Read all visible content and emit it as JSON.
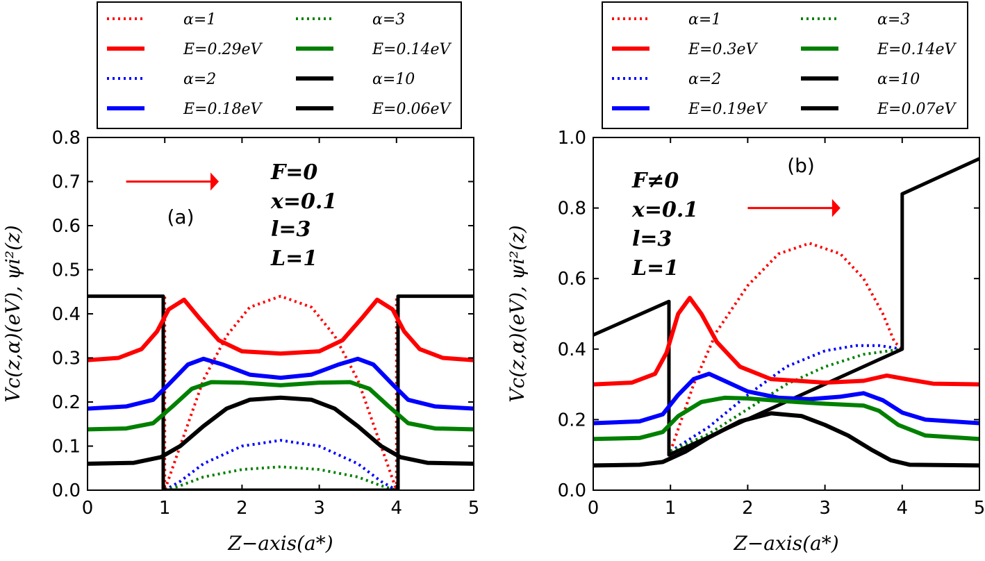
{
  "chart_data": [
    {
      "type": "line",
      "panel_label": "(a)",
      "xlabel": "Z−axis(a*)",
      "ylabel": "Vc(z,α)(eV), ψi²(z)",
      "xlim": [
        0,
        5
      ],
      "ylim": [
        0,
        0.8
      ],
      "x_ticks": [
        "0",
        "1",
        "2",
        "3",
        "4",
        "5"
      ],
      "y_ticks": [
        "0.0",
        "0.1",
        "0.2",
        "0.3",
        "0.4",
        "0.5",
        "0.6",
        "0.7",
        "0.8"
      ],
      "grid": false,
      "legend_position": "top, outside, two columns",
      "legend": [
        {
          "label": "α=1",
          "color": "#ff0000",
          "style": "dotted"
        },
        {
          "label": "α=3",
          "color": "#008000",
          "style": "dotted"
        },
        {
          "label": "E=0.29eV",
          "color": "#ff0000",
          "style": "solid"
        },
        {
          "label": "E=0.14eV",
          "color": "#008000",
          "style": "solid"
        },
        {
          "label": "α=2",
          "color": "#0000ff",
          "style": "dotted"
        },
        {
          "label": "α=10",
          "color": "#000000",
          "style": "solid"
        },
        {
          "label": "E=0.18eV",
          "color": "#0000ff",
          "style": "solid"
        },
        {
          "label": "E=0.06eV",
          "color": "#000000",
          "style": "solid"
        }
      ],
      "annotations": [
        "F=0",
        "x=0.1",
        "l=3",
        "L=1"
      ],
      "arrow": {
        "from": [
          0.5,
          0.7
        ],
        "to": [
          1.7,
          0.7
        ],
        "color": "#ff0000"
      },
      "series": [
        {
          "name": "potential α=1",
          "color": "#ff0000",
          "style": "dotted",
          "points": [
            [
              0,
              0.44
            ],
            [
              1,
              0.44
            ],
            [
              1,
              0
            ],
            [
              1.2,
              0.1
            ],
            [
              1.5,
              0.25
            ],
            [
              1.8,
              0.35
            ],
            [
              2.1,
              0.415
            ],
            [
              2.5,
              0.44
            ],
            [
              2.9,
              0.415
            ],
            [
              3.2,
              0.35
            ],
            [
              3.5,
              0.25
            ],
            [
              3.8,
              0.1
            ],
            [
              4,
              0
            ],
            [
              4,
              0.44
            ],
            [
              5,
              0.44
            ]
          ]
        },
        {
          "name": "potential α=2",
          "color": "#0000ff",
          "style": "dotted",
          "points": [
            [
              1,
              0
            ],
            [
              1.2,
              0.02
            ],
            [
              1.5,
              0.06
            ],
            [
              2,
              0.1
            ],
            [
              2.5,
              0.113
            ],
            [
              3,
              0.1
            ],
            [
              3.5,
              0.06
            ],
            [
              3.8,
              0.02
            ],
            [
              4,
              0
            ]
          ]
        },
        {
          "name": "potential α=3",
          "color": "#008000",
          "style": "dotted",
          "points": [
            [
              1,
              0
            ],
            [
              1.2,
              0.01
            ],
            [
              1.5,
              0.03
            ],
            [
              2,
              0.047
            ],
            [
              2.5,
              0.053
            ],
            [
              3,
              0.047
            ],
            [
              3.5,
              0.03
            ],
            [
              3.8,
              0.01
            ],
            [
              4,
              0
            ]
          ]
        },
        {
          "name": "potential α=10",
          "color": "#000000",
          "style": "solid",
          "points": [
            [
              0,
              0.44
            ],
            [
              0.98,
              0.44
            ],
            [
              0.98,
              0
            ],
            [
              4.02,
              0
            ],
            [
              4.02,
              0.44
            ],
            [
              5,
              0.44
            ]
          ]
        },
        {
          "name": "E=0.29eV",
          "color": "#ff0000",
          "style": "solid",
          "points": [
            [
              0,
              0.295
            ],
            [
              0.4,
              0.3
            ],
            [
              0.7,
              0.32
            ],
            [
              0.9,
              0.36
            ],
            [
              1.05,
              0.41
            ],
            [
              1.25,
              0.432
            ],
            [
              1.45,
              0.39
            ],
            [
              1.7,
              0.34
            ],
            [
              2,
              0.315
            ],
            [
              2.5,
              0.31
            ],
            [
              3,
              0.315
            ],
            [
              3.3,
              0.34
            ],
            [
              3.55,
              0.39
            ],
            [
              3.75,
              0.432
            ],
            [
              3.95,
              0.41
            ],
            [
              4.1,
              0.36
            ],
            [
              4.3,
              0.32
            ],
            [
              4.6,
              0.3
            ],
            [
              5,
              0.295
            ]
          ]
        },
        {
          "name": "E=0.18eV",
          "color": "#0000ff",
          "style": "solid",
          "points": [
            [
              0,
              0.185
            ],
            [
              0.5,
              0.19
            ],
            [
              0.85,
              0.205
            ],
            [
              1.05,
              0.24
            ],
            [
              1.3,
              0.285
            ],
            [
              1.5,
              0.298
            ],
            [
              1.75,
              0.285
            ],
            [
              2.1,
              0.262
            ],
            [
              2.5,
              0.255
            ],
            [
              2.9,
              0.262
            ],
            [
              3.25,
              0.285
            ],
            [
              3.5,
              0.298
            ],
            [
              3.7,
              0.285
            ],
            [
              3.95,
              0.24
            ],
            [
              4.15,
              0.205
            ],
            [
              4.5,
              0.19
            ],
            [
              5,
              0.185
            ]
          ]
        },
        {
          "name": "E=0.14eV",
          "color": "#008000",
          "style": "solid",
          "points": [
            [
              0,
              0.138
            ],
            [
              0.5,
              0.14
            ],
            [
              0.85,
              0.152
            ],
            [
              1.1,
              0.19
            ],
            [
              1.35,
              0.23
            ],
            [
              1.6,
              0.245
            ],
            [
              2,
              0.244
            ],
            [
              2.5,
              0.238
            ],
            [
              3,
              0.244
            ],
            [
              3.4,
              0.245
            ],
            [
              3.65,
              0.23
            ],
            [
              3.9,
              0.19
            ],
            [
              4.15,
              0.152
            ],
            [
              4.5,
              0.14
            ],
            [
              5,
              0.138
            ]
          ]
        },
        {
          "name": "E=0.06eV",
          "color": "#000000",
          "style": "solid",
          "points": [
            [
              0,
              0.06
            ],
            [
              0.6,
              0.062
            ],
            [
              0.95,
              0.075
            ],
            [
              1.2,
              0.1
            ],
            [
              1.5,
              0.145
            ],
            [
              1.8,
              0.185
            ],
            [
              2.1,
              0.205
            ],
            [
              2.5,
              0.21
            ],
            [
              2.9,
              0.205
            ],
            [
              3.2,
              0.185
            ],
            [
              3.5,
              0.145
            ],
            [
              3.8,
              0.1
            ],
            [
              4.05,
              0.075
            ],
            [
              4.4,
              0.062
            ],
            [
              5,
              0.06
            ]
          ]
        }
      ]
    },
    {
      "type": "line",
      "panel_label": "(b)",
      "xlabel": "Z−axis(a*)",
      "ylabel": "Vc(z,α)(eV), ψi²(z)",
      "xlim": [
        0,
        5
      ],
      "ylim": [
        0,
        1.0
      ],
      "x_ticks": [
        "0",
        "1",
        "2",
        "3",
        "4",
        "5"
      ],
      "y_ticks": [
        "0.0",
        "0.2",
        "0.4",
        "0.6",
        "0.8",
        "1.0"
      ],
      "grid": false,
      "legend_position": "top, outside, two columns",
      "legend": [
        {
          "label": "α=1",
          "color": "#ff0000",
          "style": "dotted"
        },
        {
          "label": "α=3",
          "color": "#008000",
          "style": "dotted"
        },
        {
          "label": "E=0.3eV",
          "color": "#ff0000",
          "style": "solid"
        },
        {
          "label": "E=0.14eV",
          "color": "#008000",
          "style": "solid"
        },
        {
          "label": "α=2",
          "color": "#0000ff",
          "style": "dotted"
        },
        {
          "label": "α=10",
          "color": "#000000",
          "style": "solid"
        },
        {
          "label": "E=0.19eV",
          "color": "#0000ff",
          "style": "solid"
        },
        {
          "label": "E=0.07eV",
          "color": "#000000",
          "style": "solid"
        }
      ],
      "annotations": [
        "F≠0",
        "x=0.1",
        "l=3",
        "L=1"
      ],
      "arrow": {
        "from": [
          2,
          0.8
        ],
        "to": [
          3.2,
          0.8
        ],
        "color": "#ff0000"
      },
      "series": [
        {
          "name": "potential α=1",
          "color": "#ff0000",
          "style": "dotted",
          "points": [
            [
              1,
              0.11
            ],
            [
              1.3,
              0.3
            ],
            [
              1.6,
              0.45
            ],
            [
              2,
              0.58
            ],
            [
              2.4,
              0.67
            ],
            [
              2.8,
              0.7
            ],
            [
              3.2,
              0.67
            ],
            [
              3.5,
              0.6
            ],
            [
              3.75,
              0.5
            ],
            [
              3.9,
              0.42
            ],
            [
              4,
              0.4
            ]
          ]
        },
        {
          "name": "potential α=2",
          "color": "#0000ff",
          "style": "dotted",
          "points": [
            [
              1,
              0.11
            ],
            [
              1.5,
              0.18
            ],
            [
              2,
              0.27
            ],
            [
              2.5,
              0.35
            ],
            [
              3,
              0.395
            ],
            [
              3.4,
              0.41
            ],
            [
              3.7,
              0.41
            ],
            [
              4,
              0.4
            ]
          ]
        },
        {
          "name": "potential α=3",
          "color": "#008000",
          "style": "dotted",
          "points": [
            [
              1,
              0.11
            ],
            [
              1.5,
              0.16
            ],
            [
              2,
              0.23
            ],
            [
              2.5,
              0.3
            ],
            [
              3,
              0.35
            ],
            [
              3.5,
              0.385
            ],
            [
              4,
              0.4
            ]
          ]
        },
        {
          "name": "potential α=10",
          "color": "#000000",
          "style": "solid",
          "points": [
            [
              0,
              0.44
            ],
            [
              0.98,
              0.535
            ],
            [
              0.98,
              0.1
            ],
            [
              4,
              0.4
            ],
            [
              4,
              0.84
            ],
            [
              5,
              0.94
            ]
          ]
        },
        {
          "name": "E=0.3eV",
          "color": "#ff0000",
          "style": "solid",
          "points": [
            [
              0,
              0.3
            ],
            [
              0.5,
              0.305
            ],
            [
              0.8,
              0.33
            ],
            [
              0.95,
              0.39
            ],
            [
              1.1,
              0.5
            ],
            [
              1.25,
              0.545
            ],
            [
              1.4,
              0.5
            ],
            [
              1.6,
              0.42
            ],
            [
              1.9,
              0.35
            ],
            [
              2.3,
              0.315
            ],
            [
              3,
              0.305
            ],
            [
              3.5,
              0.31
            ],
            [
              3.8,
              0.325
            ],
            [
              4.05,
              0.315
            ],
            [
              4.4,
              0.302
            ],
            [
              5,
              0.3
            ]
          ]
        },
        {
          "name": "E=0.19eV",
          "color": "#0000ff",
          "style": "solid",
          "points": [
            [
              0,
              0.19
            ],
            [
              0.6,
              0.195
            ],
            [
              0.9,
              0.215
            ],
            [
              1.1,
              0.27
            ],
            [
              1.3,
              0.315
            ],
            [
              1.5,
              0.33
            ],
            [
              1.7,
              0.31
            ],
            [
              2,
              0.28
            ],
            [
              2.4,
              0.262
            ],
            [
              2.8,
              0.258
            ],
            [
              3.2,
              0.265
            ],
            [
              3.5,
              0.275
            ],
            [
              3.75,
              0.255
            ],
            [
              4,
              0.22
            ],
            [
              4.3,
              0.2
            ],
            [
              5,
              0.19
            ]
          ]
        },
        {
          "name": "E=0.14eV",
          "color": "#008000",
          "style": "solid",
          "points": [
            [
              0,
              0.145
            ],
            [
              0.6,
              0.148
            ],
            [
              0.9,
              0.165
            ],
            [
              1.1,
              0.21
            ],
            [
              1.4,
              0.25
            ],
            [
              1.7,
              0.262
            ],
            [
              2,
              0.26
            ],
            [
              2.5,
              0.252
            ],
            [
              3,
              0.245
            ],
            [
              3.5,
              0.24
            ],
            [
              3.7,
              0.225
            ],
            [
              3.95,
              0.185
            ],
            [
              4.3,
              0.155
            ],
            [
              5,
              0.145
            ]
          ]
        },
        {
          "name": "E=0.07eV",
          "color": "#000000",
          "style": "solid",
          "points": [
            [
              0,
              0.07
            ],
            [
              0.6,
              0.072
            ],
            [
              0.9,
              0.08
            ],
            [
              1.2,
              0.11
            ],
            [
              1.5,
              0.15
            ],
            [
              1.9,
              0.195
            ],
            [
              2.3,
              0.218
            ],
            [
              2.7,
              0.21
            ],
            [
              3,
              0.185
            ],
            [
              3.3,
              0.155
            ],
            [
              3.6,
              0.115
            ],
            [
              3.85,
              0.085
            ],
            [
              4.1,
              0.072
            ],
            [
              5,
              0.07
            ]
          ]
        }
      ]
    }
  ]
}
